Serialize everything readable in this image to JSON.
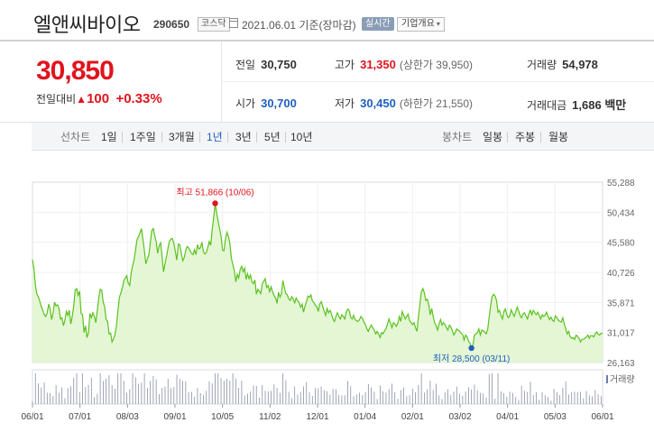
{
  "header": {
    "name": "엘앤씨바이오",
    "code": "290650",
    "market": "코스닥",
    "date": "2021.06.01",
    "basis": "기준(장마감)",
    "live_label": "실시간",
    "overview_label": "기업개요"
  },
  "summary": {
    "price": "30,850",
    "change_label": "전일대비",
    "change": "100",
    "change_pct": "+0.33%",
    "prev_close_label": "전일",
    "prev_close": "30,750",
    "high_label": "고가",
    "high": "31,350",
    "upper_limit": "(상한가 39,950)",
    "volume_label": "거래량",
    "volume": "54,978",
    "open_label": "시가",
    "open": "30,700",
    "low_label": "저가",
    "low": "30,450",
    "lower_limit": "(하한가 21,550)",
    "amount_label": "거래대금",
    "amount": "1,686 백만"
  },
  "period": {
    "line_label": "선차트",
    "line_tabs": [
      "1일",
      "1주일",
      "3개월",
      "1년",
      "3년",
      "5년",
      "10년"
    ],
    "active": "1년",
    "candle_label": "봉차트",
    "candle_tabs": [
      "일봉",
      "주봉",
      "월봉"
    ]
  },
  "colors": {
    "up": "#e0141e",
    "down": "#1f5fbf",
    "line": "#5ac21f",
    "fill": "#e4f6d4"
  },
  "chart_data": {
    "type": "area",
    "yticks": [
      "55,288",
      "50,434",
      "45,580",
      "40,726",
      "35,871",
      "31,017",
      "26,163"
    ],
    "ylim": [
      26163,
      55288
    ],
    "xticks": [
      "06/01",
      "07/01",
      "08/03",
      "09/01",
      "10/05",
      "11/02",
      "12/01",
      "01/04",
      "02/01",
      "03/02",
      "04/01",
      "05/03",
      "06/01"
    ],
    "max_label": "최고 51,866 (10/06)",
    "min_label": "최저 28,500 (03/11)",
    "volume_label": "거래량",
    "series": [
      {
        "values": [
          42800,
          41300,
          38600,
          37200,
          36800,
          36000,
          35200,
          34600,
          33900,
          33600,
          34200,
          35600,
          34800,
          33100,
          34200,
          35900,
          35300,
          35500,
          34900,
          33200,
          33400,
          32100,
          33000,
          34400,
          33800,
          34600,
          32400,
          33600,
          35300,
          37900,
          38100,
          37000,
          37700,
          34100,
          33900,
          31000,
          32100,
          30200,
          31000,
          34100,
          33400,
          34200,
          33600,
          32600,
          34600,
          36600,
          38000,
          37800,
          35900,
          35200,
          33100,
          32800,
          30800,
          30900,
          29500,
          30000,
          30700,
          32100,
          34500,
          36700,
          37400,
          38200,
          39400,
          39800,
          40200,
          39000,
          38600,
          40600,
          41800,
          42800,
          44400,
          46000,
          46500,
          47100,
          47800,
          46000,
          44200,
          42100,
          42900,
          43600,
          45500,
          47500,
          47800,
          46700,
          45600,
          43800,
          45000,
          45500,
          43200,
          40800,
          42200,
          43300,
          44600,
          45800,
          46100,
          46200,
          45400,
          44100,
          42700,
          45300,
          45200,
          43900,
          42600,
          43100,
          44200,
          44900,
          44700,
          44200,
          43800,
          43600,
          44400,
          43600,
          45200,
          44500,
          44700,
          45600,
          44100,
          43700,
          43900,
          44700,
          45700,
          45100,
          47600,
          49600,
          51866,
          50400,
          49000,
          47800,
          46600,
          44300,
          44200,
          46100,
          47200,
          46500,
          45400,
          43000,
          42000,
          41000,
          39200,
          40400,
          39800,
          41200,
          41700,
          40800,
          41400,
          39600,
          40500,
          39700,
          40300,
          39200,
          38900,
          39500,
          37200,
          38000,
          37700,
          37300,
          38900,
          39300,
          39700,
          38300,
          38600,
          37600,
          38400,
          37600,
          37000,
          36600,
          35700,
          37500,
          36700,
          37300,
          39400,
          38200,
          37300,
          37100,
          36400,
          36200,
          36800,
          36400,
          35800,
          36600,
          36100,
          35900,
          35100,
          35600,
          34300,
          35300,
          36000,
          36900,
          36700,
          37100,
          36100,
          35900,
          35400,
          35200,
          34400,
          35600,
          36000,
          35300,
          34500,
          33800,
          34900,
          34200,
          34600,
          34000,
          33200,
          32800,
          33600,
          34200,
          33600,
          33200,
          33900,
          33600,
          33200,
          34300,
          34800,
          34600,
          33500,
          33200,
          33800,
          33100,
          32900,
          32800,
          33100,
          33600,
          33300,
          32700,
          32300,
          31600,
          31200,
          31800,
          32200,
          31800,
          31400,
          30800,
          31200,
          30700,
          30200,
          31000,
          30800,
          31300,
          31600,
          32400,
          33200,
          32600,
          31800,
          32600,
          32400,
          32000,
          32500,
          33600,
          32800,
          34400,
          33800,
          33200,
          33600,
          34000,
          32900,
          32600,
          32300,
          32600,
          31800,
          31200,
          33600,
          35600,
          37600,
          38100,
          37400,
          36200,
          36400,
          35500,
          33900,
          34900,
          33600,
          32600,
          32100,
          31400,
          32400,
          33100,
          32200,
          32600,
          32300,
          31800,
          31400,
          32200,
          31900,
          31300,
          30600,
          31000,
          31600,
          31400,
          31200,
          30900,
          30700,
          29800,
          30600,
          30300,
          29600,
          29300,
          28500,
          29000,
          30600,
          30800,
          31000,
          31600,
          30600,
          31400,
          31300,
          31100,
          30800,
          31500,
          33500,
          35400,
          36800,
          37200,
          36900,
          36200,
          34300,
          34600,
          33800,
          33200,
          34400,
          34800,
          33900,
          33400,
          33700,
          34700,
          34100,
          33600,
          34300,
          35100,
          34500,
          33800,
          33400,
          34000,
          34200,
          33700,
          33200,
          34000,
          34600,
          33900,
          34600,
          34200,
          33900,
          34300,
          33800,
          33200,
          33900,
          33600,
          33800,
          34300,
          33600,
          33100,
          33500,
          33000,
          32800,
          33700,
          33400,
          33000,
          32800,
          32700,
          33400,
          32400,
          31600,
          30800,
          31200,
          30300,
          30100,
          30200,
          29900,
          30600,
          30400,
          30100,
          29500,
          29900,
          29900,
          30100,
          30300,
          30600,
          30100,
          30500,
          30500,
          30300,
          30800,
          31100,
          30700,
          30600,
          30900,
          30850
        ]
      }
    ]
  }
}
